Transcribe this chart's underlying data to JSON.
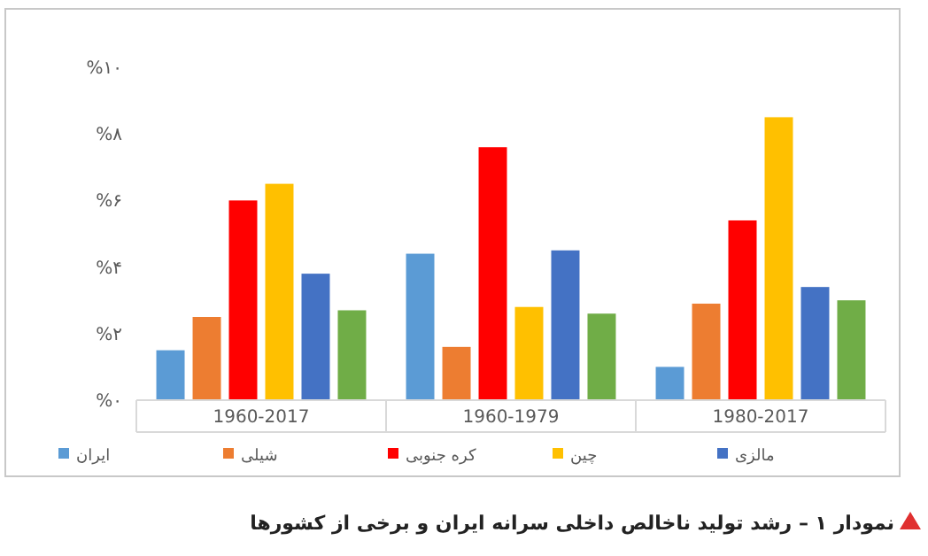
{
  "chart_data": {
    "type": "bar",
    "title": "نمودار ۱ – رشد تولید ناخالص داخلی سرانه ایران و برخی از کشورها",
    "categories": [
      "1960-2017",
      "1960-1979",
      "1980-2017"
    ],
    "series": [
      {
        "name": "ایران",
        "color": "#5b9bd5",
        "values": [
          1.5,
          4.4,
          1.0
        ]
      },
      {
        "name": "شیلی",
        "color": "#ed7d31",
        "values": [
          2.5,
          1.6,
          2.9
        ]
      },
      {
        "name": "کره جنوبی",
        "color": "#ff0000",
        "values": [
          6.0,
          7.6,
          5.4
        ]
      },
      {
        "name": "چین",
        "color": "#ffc000",
        "values": [
          6.5,
          2.8,
          8.5
        ]
      },
      {
        "name": "مالزی",
        "color": "#4472c4",
        "values": [
          3.8,
          4.5,
          3.4
        ]
      },
      {
        "color": "#70ad47",
        "values": [
          2.7,
          2.6,
          3.0
        ]
      }
    ],
    "ylim": [
      0,
      10
    ],
    "yticks": [
      {
        "value": 0,
        "label": "%۰"
      },
      {
        "value": 2,
        "label": "%۲"
      },
      {
        "value": 4,
        "label": "%۴"
      },
      {
        "value": 6,
        "label": "%۶"
      },
      {
        "value": 8,
        "label": "%۸"
      },
      {
        "value": 10,
        "label": "%۱۰"
      }
    ],
    "grid": false,
    "legend": "bottom"
  }
}
